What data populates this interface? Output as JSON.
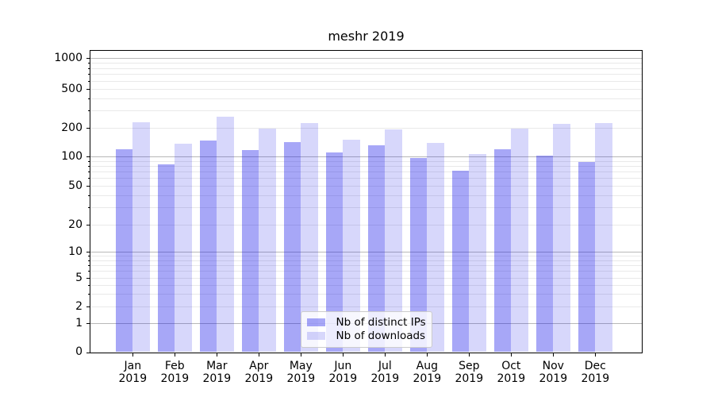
{
  "chart_data": {
    "type": "bar",
    "title": "meshr 2019",
    "categories": [
      "Jan 2019",
      "Feb 2019",
      "Mar 2019",
      "Apr 2019",
      "May 2019",
      "Jun 2019",
      "Jul 2019",
      "Aug 2019",
      "Sep 2019",
      "Oct 2019",
      "Nov 2019",
      "Dec 2019"
    ],
    "series": [
      {
        "name": "Nb of distinct IPs",
        "slug": "distinct-ips",
        "color": "#1111e8",
        "alpha": 0.37,
        "values": [
          120,
          83,
          148,
          116,
          141,
          110,
          130,
          96,
          72,
          120,
          102,
          87
        ]
      },
      {
        "name": "Nb of downloads",
        "slug": "downloads",
        "color": "#1111e8",
        "alpha": 0.17,
        "values": [
          229,
          136,
          258,
          198,
          225,
          150,
          194,
          139,
          105,
          195,
          221,
          224
        ]
      }
    ],
    "y_scale": "symlog",
    "y_ticks": [
      0,
      1,
      2,
      5,
      10,
      20,
      50,
      100,
      200,
      500,
      1000
    ],
    "ylim": [
      0,
      1200
    ],
    "grid": "both",
    "legend_position": "lower center"
  },
  "colors": {
    "background": "#ffffff",
    "axis": "#000000",
    "major_grid": "#b8b8b8",
    "minor_grid": "#e9e9e9",
    "legend_border": "#cccccc",
    "text": "#000000"
  }
}
